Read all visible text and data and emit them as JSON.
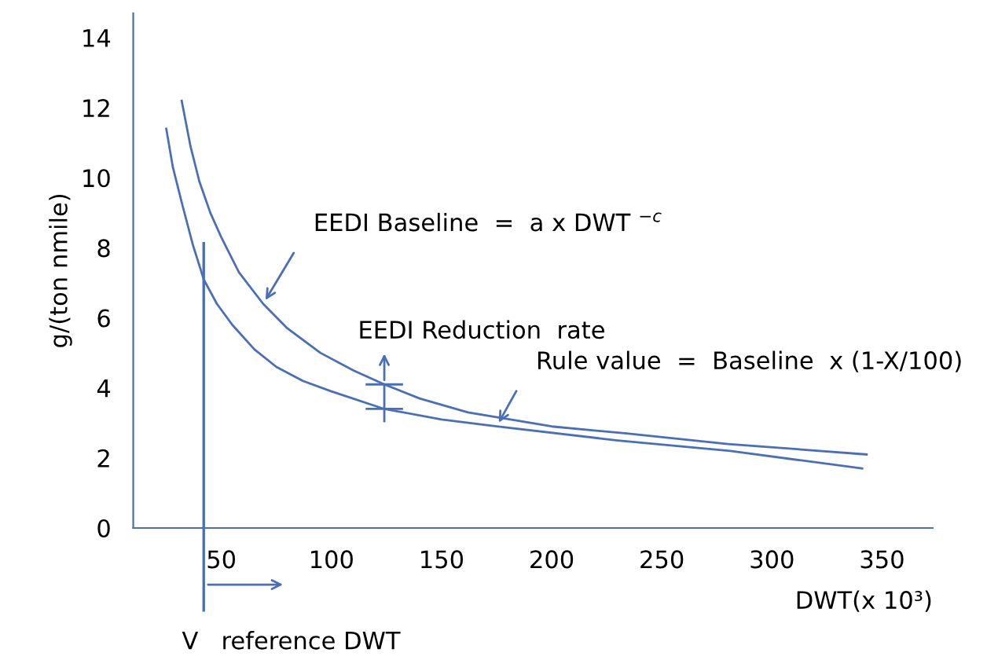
{
  "chart_data": {
    "type": "line",
    "xlabel": "DWT(x 10³)",
    "ylabel": "g/(ton nmile)",
    "series": [
      {
        "color": "#4a6fb5",
        "x": [
          32,
          36,
          40,
          45,
          50,
          58,
          69,
          80,
          95,
          110,
          124,
          140,
          162,
          200,
          234,
          280,
          343
        ],
        "values": [
          12.2,
          10.9,
          9.9,
          9.0,
          8.3,
          7.3,
          6.4,
          5.7,
          5.0,
          4.5,
          4.1,
          3.7,
          3.3,
          2.9,
          2.7,
          2.4,
          2.1
        ]
      },
      {
        "color": "#4a6fb5",
        "x": [
          25,
          28,
          32,
          37,
          42,
          48,
          55,
          65,
          75,
          87,
          100,
          124,
          150,
          175,
          230,
          281,
          341
        ],
        "values": [
          11.4,
          10.3,
          9.3,
          8.1,
          7.1,
          6.4,
          5.8,
          5.1,
          4.6,
          4.2,
          3.9,
          3.4,
          3.1,
          2.9,
          2.5,
          2.2,
          1.7
        ]
      }
    ],
    "xlim": [
      10,
      373
    ],
    "ylim": [
      0,
      14.7
    ],
    "xticks": [
      50,
      100,
      150,
      200,
      250,
      300,
      350
    ],
    "yticks": [
      0,
      2,
      4,
      6,
      8,
      10,
      12,
      14
    ],
    "grid": false,
    "marker": "none",
    "line_style": "solid",
    "ref_lines": [
      {
        "axis": "x",
        "value": 42,
        "label": "V   reference DWT",
        "color": "#4a6fb5"
      }
    ],
    "annotations": [
      {
        "text": "EEDI Baseline  =  a x DWT $^{−c}$",
        "x": 69,
        "y": 6.4
      },
      {
        "text": "EEDI Reduction  rate",
        "x": 124,
        "y": 4.1
      },
      {
        "text": "Rule value  =  Baseline  x (1-X/100)",
        "x": 175,
        "y": 2.9
      }
    ]
  }
}
